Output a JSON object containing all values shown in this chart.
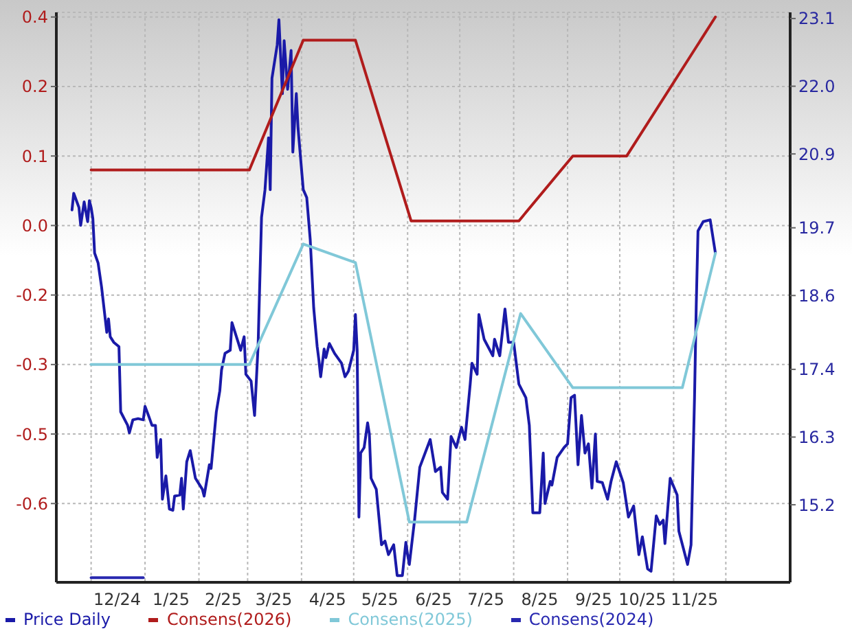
{
  "chart_data": {
    "type": "line",
    "xlim": [
      "2024-11-11",
      "2026-01-07"
    ],
    "xticks": [
      {
        "value": "2024-12-01",
        "label": null
      },
      {
        "value": "2024-12-16",
        "label": "12/24"
      },
      {
        "value": "2025-01-01",
        "label": null
      },
      {
        "value": "2025-01-16",
        "label": "1/25"
      },
      {
        "value": "2025-02-01",
        "label": null
      },
      {
        "value": "2025-02-15",
        "label": "2/25"
      },
      {
        "value": "2025-03-01",
        "label": null
      },
      {
        "value": "2025-03-16",
        "label": "3/25"
      },
      {
        "value": "2025-04-01",
        "label": null
      },
      {
        "value": "2025-04-16",
        "label": "4/25"
      },
      {
        "value": "2025-05-01",
        "label": null
      },
      {
        "value": "2025-05-16",
        "label": "5/25"
      },
      {
        "value": "2025-06-01",
        "label": null
      },
      {
        "value": "2025-06-16",
        "label": "6/25"
      },
      {
        "value": "2025-07-01",
        "label": null
      },
      {
        "value": "2025-07-16",
        "label": "7/25"
      },
      {
        "value": "2025-08-01",
        "label": null
      },
      {
        "value": "2025-08-16",
        "label": "8/25"
      },
      {
        "value": "2025-09-01",
        "label": null
      },
      {
        "value": "2025-09-16",
        "label": "9/25"
      },
      {
        "value": "2025-10-01",
        "label": null
      },
      {
        "value": "2025-10-14",
        "label": "10/25"
      },
      {
        "value": "2025-11-01",
        "label": null
      },
      {
        "value": "2025-11-13",
        "label": "11/25"
      },
      {
        "value": "2025-12-01",
        "label": null
      }
    ],
    "ylim": [
      -0.82,
      0.41
    ],
    "yticks": [
      {
        "value": 0.4,
        "label": "0.4"
      },
      {
        "value": 0.25,
        "label": "0.2"
      },
      {
        "value": 0.1,
        "label": "0.1"
      },
      {
        "value": -0.05,
        "label": "0.0"
      },
      {
        "value": -0.2,
        "label": "-0.2"
      },
      {
        "value": -0.35,
        "label": "-0.3"
      },
      {
        "value": -0.5,
        "label": "-0.5"
      },
      {
        "value": -0.65,
        "label": "-0.6"
      }
    ],
    "y2lim": [
      13.94,
      23.2
    ],
    "y2ticks": [
      23.1,
      {
        "value": 22.0,
        "label": "22.0"
      },
      20.9,
      19.7,
      18.6,
      17.4,
      16.3,
      15.2
    ],
    "grid": true,
    "legend": "bottom",
    "marker": "none",
    "line_style": "solid",
    "series": [
      {
        "name": "Price Daily",
        "color": "#1a1aa8",
        "axis": "y2",
        "x": [
          "2024-11-20",
          "2024-11-21",
          "2024-11-24",
          "2024-11-25",
          "2024-11-27",
          "2024-11-29",
          "2024-11-30",
          "2024-12-01",
          "2024-12-02",
          "2024-12-03",
          "2024-12-05",
          "2024-12-07",
          "2024-12-10",
          "2024-12-11",
          "2024-12-12",
          "2024-12-14",
          "2024-12-17",
          "2024-12-18",
          "2024-12-22",
          "2024-12-23",
          "2024-12-25",
          "2024-12-28",
          "2024-12-31",
          "2025-01-01",
          "2025-01-03",
          "2025-01-05",
          "2025-01-07",
          "2025-01-08",
          "2025-01-10",
          "2025-01-11",
          "2025-01-13",
          "2025-01-15",
          "2025-01-17",
          "2025-01-18",
          "2025-01-21",
          "2025-01-22",
          "2025-01-23",
          "2025-01-25",
          "2025-01-27",
          "2025-01-30",
          "2025-02-03",
          "2025-02-04",
          "2025-02-07",
          "2025-02-08",
          "2025-02-11",
          "2025-02-13",
          "2025-02-14",
          "2025-02-16",
          "2025-02-19",
          "2025-02-20",
          "2025-02-23",
          "2025-02-25",
          "2025-02-27",
          "2025-02-28",
          "2025-03-03",
          "2025-03-05",
          "2025-03-07",
          "2025-03-09",
          "2025-03-11",
          "2025-03-13",
          "2025-03-14",
          "2025-03-15",
          "2025-03-18",
          "2025-03-19",
          "2025-03-21",
          "2025-03-22",
          "2025-03-24",
          "2025-03-26",
          "2025-03-27",
          "2025-03-29",
          "2025-03-30",
          "2025-04-02",
          "2025-04-04",
          "2025-04-06",
          "2025-04-08",
          "2025-04-10",
          "2025-04-11",
          "2025-04-12",
          "2025-04-14",
          "2025-04-15",
          "2025-04-17",
          "2025-04-20",
          "2025-04-24",
          "2025-04-26",
          "2025-04-28",
          "2025-05-01",
          "2025-05-02",
          "2025-05-03",
          "2025-05-04",
          "2025-05-05",
          "2025-05-07",
          "2025-05-09",
          "2025-05-10",
          "2025-05-11",
          "2025-05-14",
          "2025-05-17",
          "2025-05-19",
          "2025-05-21",
          "2025-05-24",
          "2025-05-26",
          "2025-05-29",
          "2025-05-31",
          "2025-06-01",
          "2025-06-02",
          "2025-06-05",
          "2025-06-08",
          "2025-06-14",
          "2025-06-17",
          "2025-06-20",
          "2025-06-21",
          "2025-06-24",
          "2025-06-26",
          "2025-06-29",
          "2025-07-02",
          "2025-07-04",
          "2025-07-07",
          "2025-07-08",
          "2025-07-11",
          "2025-07-12",
          "2025-07-15",
          "2025-07-20",
          "2025-07-21",
          "2025-07-24",
          "2025-07-27",
          "2025-07-29",
          "2025-08-01",
          "2025-08-04",
          "2025-08-08",
          "2025-08-10",
          "2025-08-12",
          "2025-08-16",
          "2025-08-18",
          "2025-08-19",
          "2025-08-22",
          "2025-08-23",
          "2025-08-26",
          "2025-08-30",
          "2025-09-01",
          "2025-09-03",
          "2025-09-05",
          "2025-09-07",
          "2025-09-09",
          "2025-09-11",
          "2025-09-13",
          "2025-09-15",
          "2025-09-17",
          "2025-09-18",
          "2025-09-21",
          "2025-09-24",
          "2025-09-26",
          "2025-09-29",
          "2025-10-03",
          "2025-10-06",
          "2025-10-09",
          "2025-10-12",
          "2025-10-14",
          "2025-10-17",
          "2025-10-19",
          "2025-10-22",
          "2025-10-24",
          "2025-10-26",
          "2025-10-27",
          "2025-10-30",
          "2025-11-03",
          "2025-11-04",
          "2025-11-09",
          "2025-11-11",
          "2025-11-13",
          "2025-11-14",
          "2025-11-15",
          "2025-11-18",
          "2025-11-22",
          "2025-11-25"
        ],
        "values": [
          19.99,
          20.26,
          20.03,
          19.74,
          20.12,
          19.8,
          20.14,
          20.03,
          19.85,
          19.29,
          19.13,
          18.74,
          18.0,
          18.22,
          17.93,
          17.84,
          17.77,
          16.71,
          16.49,
          16.37,
          16.58,
          16.6,
          16.58,
          16.8,
          16.65,
          16.49,
          16.49,
          15.97,
          16.26,
          15.29,
          15.67,
          15.13,
          15.11,
          15.34,
          15.36,
          15.63,
          15.13,
          15.9,
          16.08,
          15.63,
          15.45,
          15.34,
          15.85,
          15.79,
          16.71,
          17.05,
          17.39,
          17.66,
          17.71,
          18.16,
          17.89,
          17.71,
          17.93,
          17.32,
          17.21,
          16.65,
          17.77,
          19.87,
          20.32,
          21.16,
          20.32,
          22.13,
          22.67,
          23.08,
          21.88,
          22.74,
          21.95,
          22.58,
          20.93,
          21.88,
          21.32,
          20.32,
          20.19,
          19.51,
          18.4,
          17.77,
          17.55,
          17.28,
          17.73,
          17.59,
          17.82,
          17.66,
          17.5,
          17.28,
          17.37,
          17.71,
          18.29,
          17.71,
          15.0,
          16.04,
          16.13,
          16.53,
          16.35,
          15.63,
          15.45,
          14.55,
          14.61,
          14.39,
          14.55,
          14.05,
          14.05,
          14.59,
          14.39,
          14.23,
          14.95,
          15.81,
          16.26,
          15.74,
          15.81,
          15.4,
          15.29,
          16.31,
          16.13,
          16.46,
          16.26,
          17.16,
          17.5,
          17.32,
          18.29,
          17.89,
          17.62,
          17.89,
          17.62,
          18.38,
          17.84,
          17.84,
          17.16,
          16.94,
          16.49,
          15.07,
          15.07,
          16.04,
          15.22,
          15.58,
          15.52,
          15.97,
          16.13,
          16.19,
          16.94,
          16.98,
          15.85,
          16.65,
          16.04,
          16.19,
          15.47,
          16.35,
          15.58,
          15.56,
          15.29,
          15.58,
          15.9,
          15.56,
          15.0,
          15.18,
          14.39,
          14.68,
          14.16,
          14.12,
          15.02,
          14.88,
          14.95,
          14.57,
          15.63,
          15.36,
          14.77,
          14.23,
          14.55,
          16.94,
          18.45,
          19.65,
          19.8,
          19.83,
          19.29
        ]
      },
      {
        "name": "Consens(2026)",
        "color": "#b01c1c",
        "x": [
          "2024-12-01",
          "2025-03-02",
          "2025-04-02",
          "2025-05-02",
          "2025-06-03",
          "2025-08-04",
          "2025-09-04",
          "2025-10-05",
          "2025-11-25"
        ],
        "values": [
          0.07,
          0.07,
          0.35,
          0.35,
          -0.04,
          -0.04,
          0.1,
          0.1,
          0.4
        ]
      },
      {
        "name": "Consens(2025)",
        "color": "#80c8d8",
        "x": [
          "2024-12-01",
          "2025-03-02",
          "2025-04-02",
          "2025-05-02",
          "2025-06-02",
          "2025-07-05",
          "2025-08-05",
          "2025-09-04",
          "2025-11-06",
          "2025-11-25"
        ],
        "values": [
          -0.35,
          -0.35,
          -0.09,
          -0.13,
          -0.69,
          -0.69,
          -0.24,
          -0.4,
          -0.4,
          -0.11
        ]
      },
      {
        "name": "Consens(2024)",
        "color": "#2828b0",
        "x": [
          "2024-12-01",
          "2024-12-31"
        ],
        "values": [
          -0.81,
          -0.81
        ]
      }
    ]
  }
}
